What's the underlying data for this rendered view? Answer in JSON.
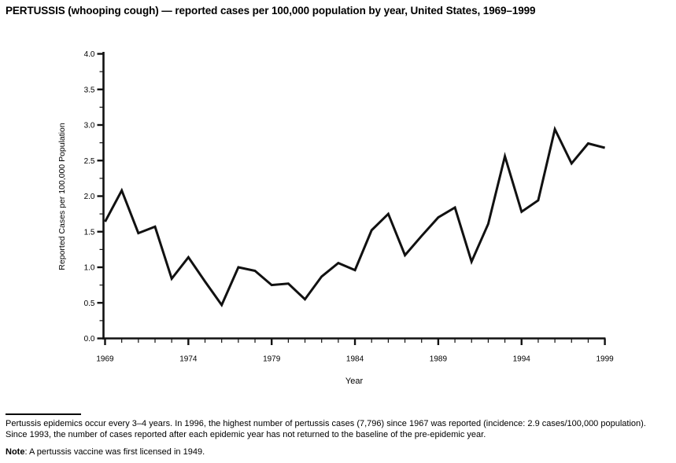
{
  "title": "PERTUSSIS (whooping cough) — reported cases per 100,000 population by year, United States, 1969–1999",
  "chart_data": {
    "type": "line",
    "title": "PERTUSSIS (whooping cough) — reported cases per 100,000 population by year, United States, 1969–1999",
    "xlabel": "Year",
    "ylabel": "Reported Cases per 100,000 Population",
    "x": [
      1969,
      1970,
      1971,
      1972,
      1973,
      1974,
      1975,
      1976,
      1977,
      1978,
      1979,
      1980,
      1981,
      1982,
      1983,
      1984,
      1985,
      1986,
      1987,
      1988,
      1989,
      1990,
      1991,
      1992,
      1993,
      1994,
      1995,
      1996,
      1997,
      1998,
      1999
    ],
    "values": [
      1.64,
      2.08,
      1.48,
      1.57,
      0.84,
      1.14,
      0.8,
      0.47,
      1.0,
      0.95,
      0.75,
      0.77,
      0.55,
      0.87,
      1.06,
      0.96,
      1.52,
      1.75,
      1.17,
      1.44,
      1.7,
      1.84,
      1.08,
      1.61,
      2.56,
      1.78,
      1.94,
      2.94,
      2.46,
      2.74,
      2.68
    ],
    "ylim": [
      0.0,
      4.0
    ],
    "y_major_tick_step": 0.5,
    "y_minor_tick_step": 0.25,
    "y_tick_labels": [
      "0.0",
      "0.5",
      "1.0",
      "1.5",
      "2.0",
      "2.5",
      "3.0",
      "3.5",
      "4.0"
    ],
    "x_major_ticks": [
      1969,
      1974,
      1979,
      1984,
      1989,
      1994,
      1999
    ],
    "x_minor_tick_step": 1,
    "grid": false,
    "legend": "none",
    "line_color": "#111111",
    "axis_color": "#111111"
  },
  "footnote": {
    "lines": [
      "Pertussis epidemics occur every 3–4 years. In 1996, the highest number of pertussis cases (7,796) since 1967 was reported (incidence: 2.9 cases/100,000 population).",
      "Since 1993, the number of cases reported after each epidemic year has not returned to the baseline of the pre-epidemic year."
    ],
    "note_label": "Note",
    "note_text": ": A pertussis vaccine was first licensed in 1949."
  }
}
